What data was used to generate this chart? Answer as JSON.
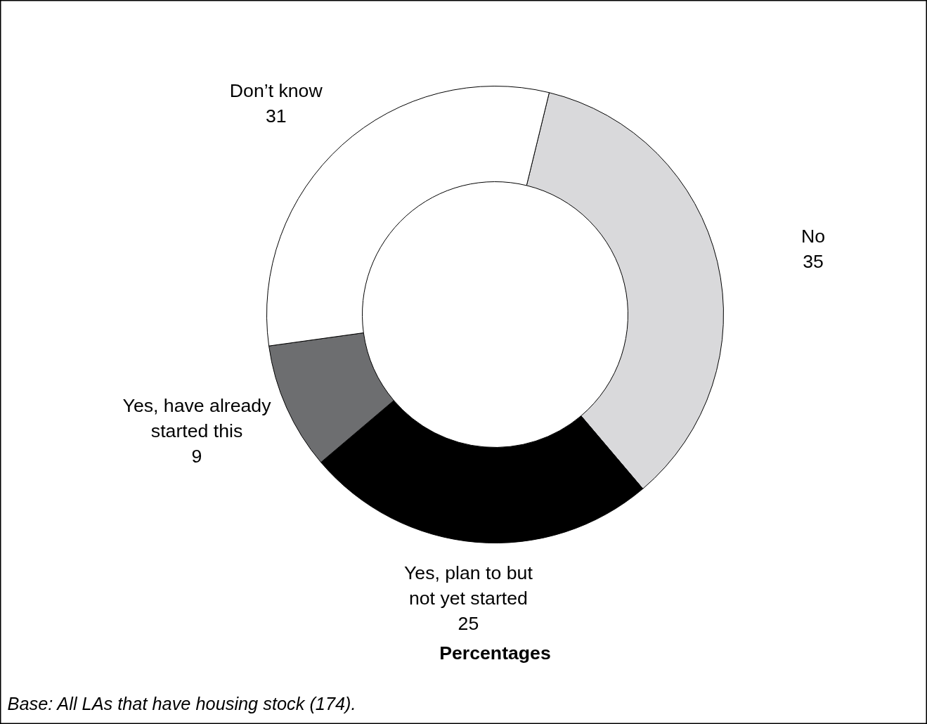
{
  "chart_data": {
    "type": "donut",
    "title": "Percentages",
    "categories": [
      "No",
      "Yes, plan to but not yet started",
      "Yes, have already started this",
      "Don’t know"
    ],
    "values": [
      35,
      25,
      9,
      31
    ],
    "colors": [
      "#d9d9db",
      "#000000",
      "#6d6e70",
      "#ffffff"
    ],
    "data_labels": true,
    "annotations": [
      "Base: All LAs that have housing stock (174)."
    ]
  }
}
